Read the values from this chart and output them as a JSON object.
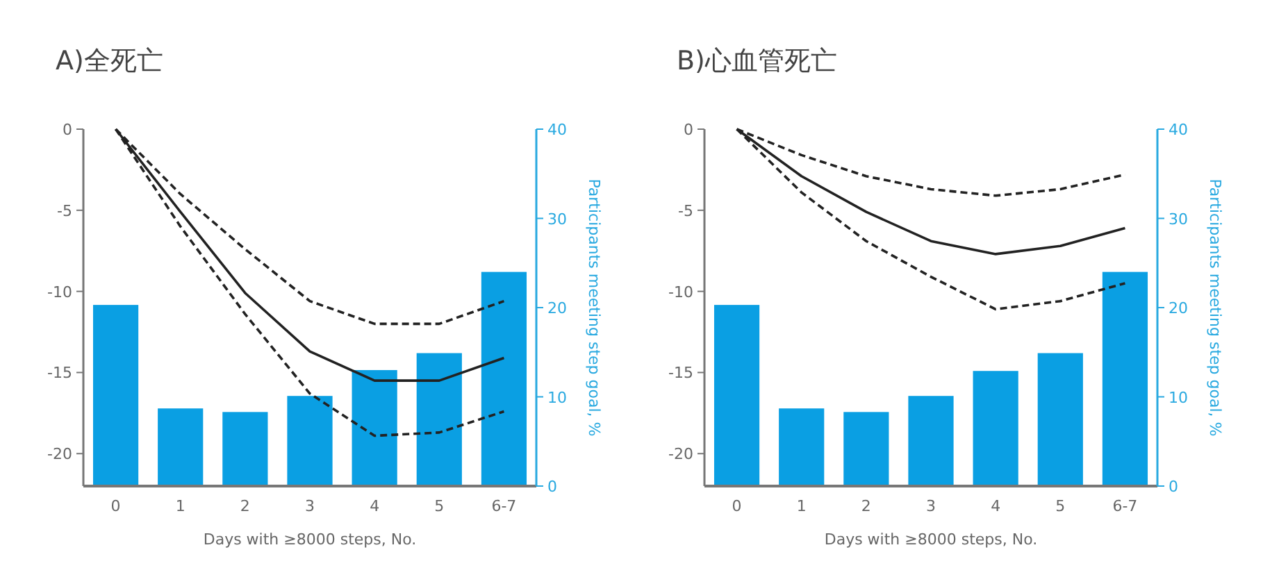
{
  "chart_data": [
    {
      "type": "bar",
      "title": "A)全死亡",
      "xlabel": "Days with ≥8000 steps, No.",
      "y2label": "Participants meeting step goal, %",
      "categories": [
        "0",
        "1",
        "2",
        "3",
        "4",
        "5",
        "6-7"
      ],
      "ylim": [
        -22,
        0
      ],
      "yticks": [
        0,
        -5,
        -10,
        -15,
        -20
      ],
      "y2lim": [
        0,
        40
      ],
      "y2ticks": [
        0,
        10,
        20,
        30,
        40
      ],
      "series": [
        {
          "type": "bar",
          "axis": "y2",
          "color": "#0a9fe3",
          "values": [
            20.3,
            8.7,
            8.3,
            10.1,
            13.0,
            14.9,
            24.0
          ]
        },
        {
          "type": "line",
          "axis": "y",
          "color": "#222222",
          "line_style": "dashed",
          "values": [
            0,
            -4.0,
            -7.4,
            -10.6,
            -12.0,
            -12.0,
            -10.6
          ]
        },
        {
          "type": "line",
          "axis": "y",
          "color": "#222222",
          "line_style": "solid",
          "values": [
            0,
            -5.1,
            -10.1,
            -13.7,
            -15.5,
            -15.5,
            -14.1
          ]
        },
        {
          "type": "line",
          "axis": "y",
          "color": "#222222",
          "line_style": "dashed",
          "values": [
            0,
            -6.0,
            -11.4,
            -16.3,
            -18.9,
            -18.7,
            -17.4
          ]
        }
      ]
    },
    {
      "type": "bar",
      "title": "B)心血管死亡",
      "xlabel": "Days with ≥8000 steps, No.",
      "y2label": "Participants meeting step goal, %",
      "categories": [
        "0",
        "1",
        "2",
        "3",
        "4",
        "5",
        "6-7"
      ],
      "ylim": [
        -22,
        0
      ],
      "yticks": [
        0,
        -5,
        -10,
        -15,
        -20
      ],
      "y2lim": [
        0,
        40
      ],
      "y2ticks": [
        0,
        10,
        20,
        30,
        40
      ],
      "series": [
        {
          "type": "bar",
          "axis": "y2",
          "color": "#0a9fe3",
          "values": [
            20.3,
            8.7,
            8.3,
            10.1,
            12.9,
            14.9,
            24.0
          ]
        },
        {
          "type": "line",
          "axis": "y",
          "color": "#222222",
          "line_style": "dashed",
          "values": [
            0,
            -1.6,
            -2.9,
            -3.7,
            -4.1,
            -3.7,
            -2.8
          ]
        },
        {
          "type": "line",
          "axis": "y",
          "color": "#222222",
          "line_style": "solid",
          "values": [
            0,
            -2.9,
            -5.1,
            -6.9,
            -7.7,
            -7.2,
            -6.1
          ]
        },
        {
          "type": "line",
          "axis": "y",
          "color": "#222222",
          "line_style": "dashed",
          "values": [
            0,
            -3.9,
            -6.9,
            -9.1,
            -11.1,
            -10.6,
            -9.5
          ]
        }
      ]
    }
  ]
}
